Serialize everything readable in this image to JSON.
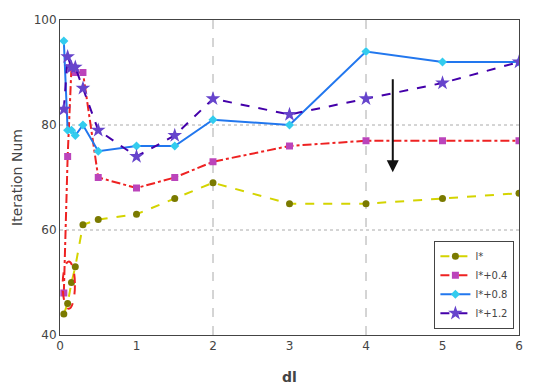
{
  "chart_data": {
    "type": "line",
    "xlabel": "dl",
    "ylabel": "Iteration Num",
    "xlim": [
      0,
      6
    ],
    "ylim": [
      40,
      100
    ],
    "xticks": [
      0,
      1,
      2,
      3,
      4,
      5,
      6
    ],
    "yticks": [
      40,
      60,
      80,
      100
    ],
    "grid": false,
    "hlines": [
      60,
      80
    ],
    "vlines": [
      2,
      4
    ],
    "legend": "lower right",
    "x": [
      0.05,
      0.1,
      0.15,
      0.2,
      0.3,
      0.5,
      1.0,
      1.5,
      2.0,
      3.0,
      4.0,
      5.0,
      6.0
    ],
    "series": [
      {
        "name": "l*",
        "color": "#d4d400",
        "marker_color": "#7a7a00",
        "line_style": "dash",
        "marker": "circle",
        "values": [
          44,
          46,
          50,
          53,
          61,
          62,
          63,
          66,
          69,
          65,
          65,
          66,
          67
        ]
      },
      {
        "name": "l*+0.4",
        "color": "#ee2222",
        "marker_color": "#bb44bb",
        "line_style": "dashdot",
        "marker": "square",
        "values": [
          48,
          74,
          91,
          90,
          90,
          70,
          68,
          70,
          73,
          76,
          77,
          77,
          77
        ]
      },
      {
        "name": "l*+0.8",
        "color": "#2277ee",
        "marker_color": "#33ccee",
        "line_style": "solid",
        "marker": "diamond",
        "values": [
          96,
          79,
          79,
          78,
          80,
          75,
          76,
          76,
          81,
          80,
          94,
          92,
          92
        ]
      },
      {
        "name": "l*+1.2",
        "color": "#4400aa",
        "marker_color": "#6644cc",
        "line_style": "dash",
        "marker": "star",
        "values": [
          83,
          93,
          91,
          91,
          87,
          79,
          74,
          78,
          85,
          82,
          85,
          88,
          92
        ]
      }
    ],
    "arrow": {
      "x": 4.35,
      "y_start": 89,
      "y_end": 71,
      "color": "#111111"
    },
    "ellipse": {
      "center_x": 0.115,
      "center_y": 49.5,
      "width": 0.16,
      "height": 9,
      "color": "#ee2222"
    }
  }
}
